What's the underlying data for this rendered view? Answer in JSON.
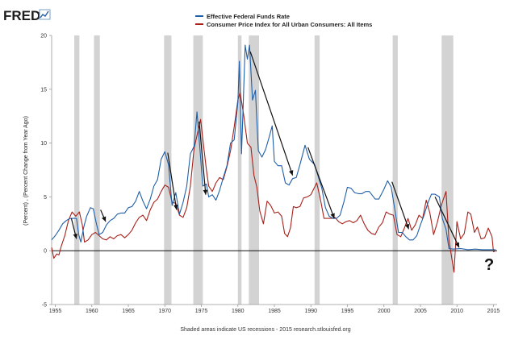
{
  "header": {
    "logo": "FRED"
  },
  "chart_data": {
    "type": "line",
    "ylabel": "(Percent) , (Percent Change from Year Ago)",
    "footnote": "Shaded areas indicate US recessions - 2015 research.stlouisfed.org",
    "annotation": "?",
    "xlim": [
      1954.5,
      2015.5
    ],
    "ylim": [
      -5,
      20
    ],
    "x_ticks": [
      "1955",
      "1960",
      "1965",
      "1970",
      "1975",
      "1980",
      "1985",
      "1990",
      "1995",
      "2000",
      "2005",
      "2010",
      "2015"
    ],
    "y_ticks": [
      "20",
      "15",
      "10",
      "5",
      "0",
      "-5"
    ],
    "grid": false,
    "legend_position": "top",
    "recessions": [
      [
        1957.6,
        1958.3
      ],
      [
        1960.3,
        1961.1
      ],
      [
        1969.9,
        1970.9
      ],
      [
        1973.9,
        1975.2
      ],
      [
        1980.0,
        1980.5
      ],
      [
        1981.5,
        1982.9
      ],
      [
        1990.5,
        1991.2
      ],
      [
        2001.2,
        2001.9
      ],
      [
        2007.9,
        2009.5
      ]
    ],
    "series": [
      {
        "name": "Effective Federal Funds Rate",
        "color": "#1f5fa8",
        "points": [
          [
            1954.5,
            1.0
          ],
          [
            1955.0,
            1.4
          ],
          [
            1955.5,
            1.9
          ],
          [
            1956.0,
            2.5
          ],
          [
            1956.5,
            2.8
          ],
          [
            1957.0,
            3.0
          ],
          [
            1957.5,
            3.0
          ],
          [
            1957.9,
            3.0
          ],
          [
            1958.2,
            1.5
          ],
          [
            1958.5,
            0.8
          ],
          [
            1958.9,
            2.2
          ],
          [
            1959.3,
            3.2
          ],
          [
            1959.8,
            4.0
          ],
          [
            1960.2,
            3.9
          ],
          [
            1960.6,
            2.6
          ],
          [
            1961.0,
            1.5
          ],
          [
            1961.5,
            1.7
          ],
          [
            1962.0,
            2.4
          ],
          [
            1962.5,
            2.8
          ],
          [
            1963.0,
            3.0
          ],
          [
            1963.5,
            3.4
          ],
          [
            1964.0,
            3.5
          ],
          [
            1964.5,
            3.5
          ],
          [
            1965.0,
            4.0
          ],
          [
            1965.5,
            4.1
          ],
          [
            1966.0,
            4.6
          ],
          [
            1966.5,
            5.5
          ],
          [
            1967.0,
            4.6
          ],
          [
            1967.5,
            3.9
          ],
          [
            1968.0,
            4.8
          ],
          [
            1968.5,
            6.0
          ],
          [
            1969.0,
            6.6
          ],
          [
            1969.5,
            8.5
          ],
          [
            1970.0,
            9.2
          ],
          [
            1970.5,
            8.0
          ],
          [
            1971.0,
            4.2
          ],
          [
            1971.5,
            5.4
          ],
          [
            1972.0,
            3.4
          ],
          [
            1972.5,
            4.5
          ],
          [
            1973.0,
            6.0
          ],
          [
            1973.5,
            9.0
          ],
          [
            1974.0,
            9.7
          ],
          [
            1974.4,
            12.9
          ],
          [
            1974.8,
            9.5
          ],
          [
            1975.2,
            6.0
          ],
          [
            1975.7,
            6.2
          ],
          [
            1976.0,
            5.0
          ],
          [
            1976.5,
            5.2
          ],
          [
            1977.0,
            4.7
          ],
          [
            1977.5,
            5.6
          ],
          [
            1978.0,
            6.8
          ],
          [
            1978.5,
            7.9
          ],
          [
            1979.0,
            10.0
          ],
          [
            1979.5,
            10.3
          ],
          [
            1980.0,
            13.8
          ],
          [
            1980.2,
            17.6
          ],
          [
            1980.5,
            9.0
          ],
          [
            1980.8,
            15.0
          ],
          [
            1981.0,
            19.1
          ],
          [
            1981.3,
            17.8
          ],
          [
            1981.6,
            19.1
          ],
          [
            1982.0,
            14.0
          ],
          [
            1982.4,
            14.9
          ],
          [
            1982.8,
            9.3
          ],
          [
            1983.3,
            8.7
          ],
          [
            1983.8,
            9.4
          ],
          [
            1984.3,
            10.6
          ],
          [
            1984.7,
            11.6
          ],
          [
            1985.0,
            8.3
          ],
          [
            1985.5,
            7.9
          ],
          [
            1986.0,
            7.9
          ],
          [
            1986.5,
            6.3
          ],
          [
            1987.0,
            6.1
          ],
          [
            1987.5,
            6.7
          ],
          [
            1988.0,
            6.8
          ],
          [
            1988.5,
            8.0
          ],
          [
            1989.2,
            9.8
          ],
          [
            1989.8,
            8.5
          ],
          [
            1990.5,
            8.0
          ],
          [
            1991.0,
            6.9
          ],
          [
            1991.5,
            5.8
          ],
          [
            1992.0,
            4.0
          ],
          [
            1992.5,
            3.2
          ],
          [
            1993.0,
            3.0
          ],
          [
            1993.5,
            3.0
          ],
          [
            1994.0,
            3.3
          ],
          [
            1994.5,
            4.5
          ],
          [
            1995.0,
            5.9
          ],
          [
            1995.5,
            5.8
          ],
          [
            1996.0,
            5.4
          ],
          [
            1996.5,
            5.3
          ],
          [
            1997.0,
            5.3
          ],
          [
            1997.5,
            5.5
          ],
          [
            1998.0,
            5.5
          ],
          [
            1998.8,
            4.8
          ],
          [
            1999.3,
            4.8
          ],
          [
            2000.0,
            5.7
          ],
          [
            2000.5,
            6.5
          ],
          [
            2001.0,
            5.9
          ],
          [
            2001.5,
            3.8
          ],
          [
            2002.0,
            1.7
          ],
          [
            2002.5,
            1.7
          ],
          [
            2003.0,
            1.3
          ],
          [
            2003.5,
            1.0
          ],
          [
            2004.0,
            1.0
          ],
          [
            2004.5,
            1.4
          ],
          [
            2005.0,
            2.4
          ],
          [
            2005.5,
            3.3
          ],
          [
            2006.0,
            4.4
          ],
          [
            2006.5,
            5.25
          ],
          [
            2007.0,
            5.25
          ],
          [
            2007.6,
            5.0
          ],
          [
            2008.0,
            3.0
          ],
          [
            2008.5,
            2.0
          ],
          [
            2008.9,
            0.2
          ],
          [
            2009.5,
            0.15
          ],
          [
            2010.5,
            0.2
          ],
          [
            2011.5,
            0.1
          ],
          [
            2012.5,
            0.15
          ],
          [
            2013.5,
            0.1
          ],
          [
            2014.5,
            0.1
          ],
          [
            2015.3,
            0.1
          ]
        ]
      },
      {
        "name": "Consumer Price Index for All Urban Consumers: All Items",
        "color": "#a8201a",
        "points": [
          [
            1954.5,
            0.3
          ],
          [
            1954.8,
            -0.7
          ],
          [
            1955.2,
            -0.3
          ],
          [
            1955.5,
            -0.4
          ],
          [
            1955.8,
            0.4
          ],
          [
            1956.3,
            1.4
          ],
          [
            1956.8,
            2.8
          ],
          [
            1957.3,
            3.6
          ],
          [
            1957.8,
            3.2
          ],
          [
            1958.3,
            3.6
          ],
          [
            1958.7,
            2.4
          ],
          [
            1959.0,
            0.8
          ],
          [
            1959.5,
            1.0
          ],
          [
            1960.0,
            1.5
          ],
          [
            1960.5,
            1.7
          ],
          [
            1961.0,
            1.4
          ],
          [
            1961.5,
            1.1
          ],
          [
            1962.0,
            1.0
          ],
          [
            1962.5,
            1.3
          ],
          [
            1963.0,
            1.1
          ],
          [
            1963.5,
            1.4
          ],
          [
            1964.0,
            1.5
          ],
          [
            1964.5,
            1.2
          ],
          [
            1965.0,
            1.5
          ],
          [
            1965.5,
            1.9
          ],
          [
            1966.0,
            2.6
          ],
          [
            1966.5,
            3.1
          ],
          [
            1967.0,
            3.3
          ],
          [
            1967.5,
            2.8
          ],
          [
            1968.0,
            3.8
          ],
          [
            1968.5,
            4.5
          ],
          [
            1969.0,
            4.8
          ],
          [
            1969.5,
            5.5
          ],
          [
            1970.0,
            6.1
          ],
          [
            1970.5,
            5.9
          ],
          [
            1971.0,
            4.5
          ],
          [
            1971.5,
            4.4
          ],
          [
            1972.0,
            3.3
          ],
          [
            1972.5,
            3.1
          ],
          [
            1973.0,
            4.0
          ],
          [
            1973.5,
            6.0
          ],
          [
            1974.0,
            9.5
          ],
          [
            1974.5,
            11.0
          ],
          [
            1974.9,
            12.2
          ],
          [
            1975.3,
            9.8
          ],
          [
            1975.7,
            7.5
          ],
          [
            1976.0,
            6.0
          ],
          [
            1976.5,
            5.5
          ],
          [
            1977.0,
            6.3
          ],
          [
            1977.5,
            6.8
          ],
          [
            1978.0,
            6.6
          ],
          [
            1978.5,
            7.8
          ],
          [
            1979.0,
            9.3
          ],
          [
            1979.5,
            11.5
          ],
          [
            1980.0,
            14.0
          ],
          [
            1980.3,
            14.7
          ],
          [
            1980.8,
            12.6
          ],
          [
            1981.3,
            10.0
          ],
          [
            1981.8,
            9.6
          ],
          [
            1982.2,
            7.0
          ],
          [
            1982.6,
            5.9
          ],
          [
            1983.0,
            3.7
          ],
          [
            1983.5,
            2.5
          ],
          [
            1984.0,
            4.6
          ],
          [
            1984.5,
            4.2
          ],
          [
            1985.0,
            3.5
          ],
          [
            1985.5,
            3.6
          ],
          [
            1986.0,
            3.2
          ],
          [
            1986.4,
            1.6
          ],
          [
            1986.8,
            1.3
          ],
          [
            1987.2,
            2.1
          ],
          [
            1987.6,
            4.1
          ],
          [
            1988.0,
            4.0
          ],
          [
            1988.5,
            4.1
          ],
          [
            1989.0,
            4.9
          ],
          [
            1989.5,
            5.0
          ],
          [
            1990.0,
            5.2
          ],
          [
            1990.8,
            6.3
          ],
          [
            1991.3,
            4.8
          ],
          [
            1991.8,
            3.0
          ],
          [
            1992.3,
            3.0
          ],
          [
            1992.8,
            3.0
          ],
          [
            1993.3,
            3.1
          ],
          [
            1993.8,
            2.7
          ],
          [
            1994.3,
            2.5
          ],
          [
            1994.8,
            2.7
          ],
          [
            1995.3,
            2.8
          ],
          [
            1995.8,
            2.6
          ],
          [
            1996.3,
            2.8
          ],
          [
            1996.8,
            3.3
          ],
          [
            1997.3,
            2.5
          ],
          [
            1997.8,
            1.9
          ],
          [
            1998.3,
            1.6
          ],
          [
            1998.8,
            1.5
          ],
          [
            1999.3,
            2.2
          ],
          [
            1999.8,
            2.6
          ],
          [
            2000.3,
            3.6
          ],
          [
            2000.8,
            3.4
          ],
          [
            2001.3,
            3.3
          ],
          [
            2001.8,
            1.5
          ],
          [
            2002.3,
            1.3
          ],
          [
            2002.8,
            2.1
          ],
          [
            2003.3,
            3.0
          ],
          [
            2003.8,
            1.9
          ],
          [
            2004.3,
            2.4
          ],
          [
            2004.8,
            3.3
          ],
          [
            2005.3,
            3.0
          ],
          [
            2005.8,
            4.7
          ],
          [
            2006.3,
            3.5
          ],
          [
            2006.8,
            1.5
          ],
          [
            2007.3,
            2.6
          ],
          [
            2007.9,
            4.3
          ],
          [
            2008.5,
            5.5
          ],
          [
            2008.9,
            1.0
          ],
          [
            2009.2,
            -0.3
          ],
          [
            2009.6,
            -2.0
          ],
          [
            2010.0,
            2.7
          ],
          [
            2010.5,
            1.1
          ],
          [
            2011.0,
            1.6
          ],
          [
            2011.5,
            3.6
          ],
          [
            2011.9,
            3.4
          ],
          [
            2012.4,
            1.7
          ],
          [
            2012.8,
            2.2
          ],
          [
            2013.3,
            1.1
          ],
          [
            2013.8,
            1.2
          ],
          [
            2014.3,
            2.1
          ],
          [
            2014.8,
            1.3
          ],
          [
            2015.0,
            -0.1
          ],
          [
            2015.3,
            0.0
          ]
        ]
      }
    ],
    "arrows": [
      [
        1957.2,
        3.0,
        1957.9,
        1.1
      ],
      [
        1961.2,
        3.8,
        1961.9,
        2.7
      ],
      [
        1970.4,
        9.1,
        1971.6,
        3.8
      ],
      [
        1974.7,
        12.0,
        1975.6,
        5.2
      ],
      [
        1981.7,
        18.5,
        1987.5,
        7.0
      ],
      [
        1989.6,
        9.6,
        1993.2,
        3.0
      ],
      [
        2001.1,
        6.4,
        2003.4,
        2.0
      ],
      [
        2007.0,
        5.0,
        2010.3,
        0.3
      ]
    ]
  }
}
